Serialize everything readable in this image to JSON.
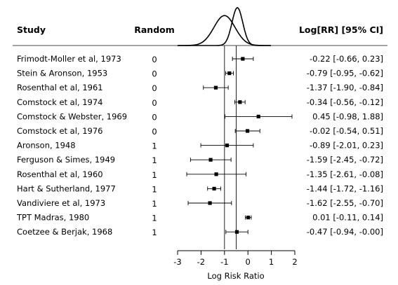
{
  "headers": {
    "study": "Study",
    "random": "Random",
    "estimate": "Log[RR] [95% CI]"
  },
  "chart_data": {
    "type": "forest",
    "xlabel": "Log Risk Ratio",
    "xlim": [
      -3,
      2
    ],
    "xticks": [
      -3,
      -2,
      -1,
      0,
      1,
      2
    ],
    "reference_lines": [
      -1,
      -0.5
    ],
    "density_curves": [
      {
        "mean": -1.0,
        "sd": 0.45
      },
      {
        "mean": -0.45,
        "sd": 0.23
      }
    ],
    "rows": [
      {
        "study": "Frimodt-Moller et al, 1973",
        "random": "0",
        "est": -0.22,
        "lo": -0.66,
        "hi": 0.23,
        "ci_text": "-0.22 [-0.66,  0.23]"
      },
      {
        "study": "Stein & Aronson, 1953",
        "random": "0",
        "est": -0.79,
        "lo": -0.95,
        "hi": -0.62,
        "ci_text": "-0.79 [-0.95, -0.62]"
      },
      {
        "study": "Rosenthal et al, 1961",
        "random": "0",
        "est": -1.37,
        "lo": -1.9,
        "hi": -0.84,
        "ci_text": "-1.37 [-1.90, -0.84]"
      },
      {
        "study": "Comstock et al, 1974",
        "random": "0",
        "est": -0.34,
        "lo": -0.56,
        "hi": -0.12,
        "ci_text": "-0.34 [-0.56, -0.12]"
      },
      {
        "study": "Comstock & Webster, 1969",
        "random": "0",
        "est": 0.45,
        "lo": -0.98,
        "hi": 1.88,
        "ci_text": "0.45 [-0.98,  1.88]"
      },
      {
        "study": "Comstock et al, 1976",
        "random": "0",
        "est": -0.02,
        "lo": -0.54,
        "hi": 0.51,
        "ci_text": "-0.02 [-0.54,  0.51]"
      },
      {
        "study": "Aronson, 1948",
        "random": "1",
        "est": -0.89,
        "lo": -2.01,
        "hi": 0.23,
        "ci_text": "-0.89 [-2.01,  0.23]"
      },
      {
        "study": "Ferguson & Simes, 1949",
        "random": "1",
        "est": -1.59,
        "lo": -2.45,
        "hi": -0.72,
        "ci_text": "-1.59 [-2.45, -0.72]"
      },
      {
        "study": "Rosenthal et al, 1960",
        "random": "1",
        "est": -1.35,
        "lo": -2.61,
        "hi": -0.08,
        "ci_text": "-1.35 [-2.61, -0.08]"
      },
      {
        "study": "Hart & Sutherland, 1977",
        "random": "1",
        "est": -1.44,
        "lo": -1.72,
        "hi": -1.16,
        "ci_text": "-1.44 [-1.72, -1.16]"
      },
      {
        "study": "Vandiviere et al, 1973",
        "random": "1",
        "est": -1.62,
        "lo": -2.55,
        "hi": -0.7,
        "ci_text": "-1.62 [-2.55, -0.70]"
      },
      {
        "study": "TPT Madras, 1980",
        "random": "1",
        "est": 0.01,
        "lo": -0.11,
        "hi": 0.14,
        "ci_text": "0.01 [-0.11,  0.14]"
      },
      {
        "study": "Coetzee & Berjak, 1968",
        "random": "1",
        "est": -0.47,
        "lo": -0.94,
        "hi": -0.0,
        "ci_text": "-0.47 [-0.94, -0.00]"
      }
    ]
  }
}
